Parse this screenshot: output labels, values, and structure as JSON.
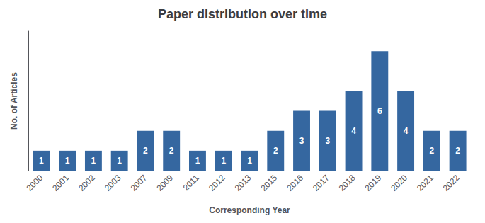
{
  "chart_data": {
    "type": "bar",
    "title": "Paper distribution over time",
    "xlabel": "Corresponding Year",
    "ylabel": "No. of Articles",
    "categories": [
      "2000",
      "2001",
      "2002",
      "2003",
      "2007",
      "2009",
      "2011",
      "2012",
      "2013",
      "2015",
      "2016",
      "2017",
      "2018",
      "2019",
      "2020",
      "2021",
      "2022"
    ],
    "values": [
      1,
      1,
      1,
      1,
      2,
      2,
      1,
      1,
      1,
      2,
      3,
      3,
      4,
      6,
      4,
      2,
      2
    ],
    "color": "#3567a0",
    "ylim": [
      0,
      7
    ],
    "yticks": [],
    "grid": false,
    "data_labels": true,
    "tick_labels": "x"
  }
}
